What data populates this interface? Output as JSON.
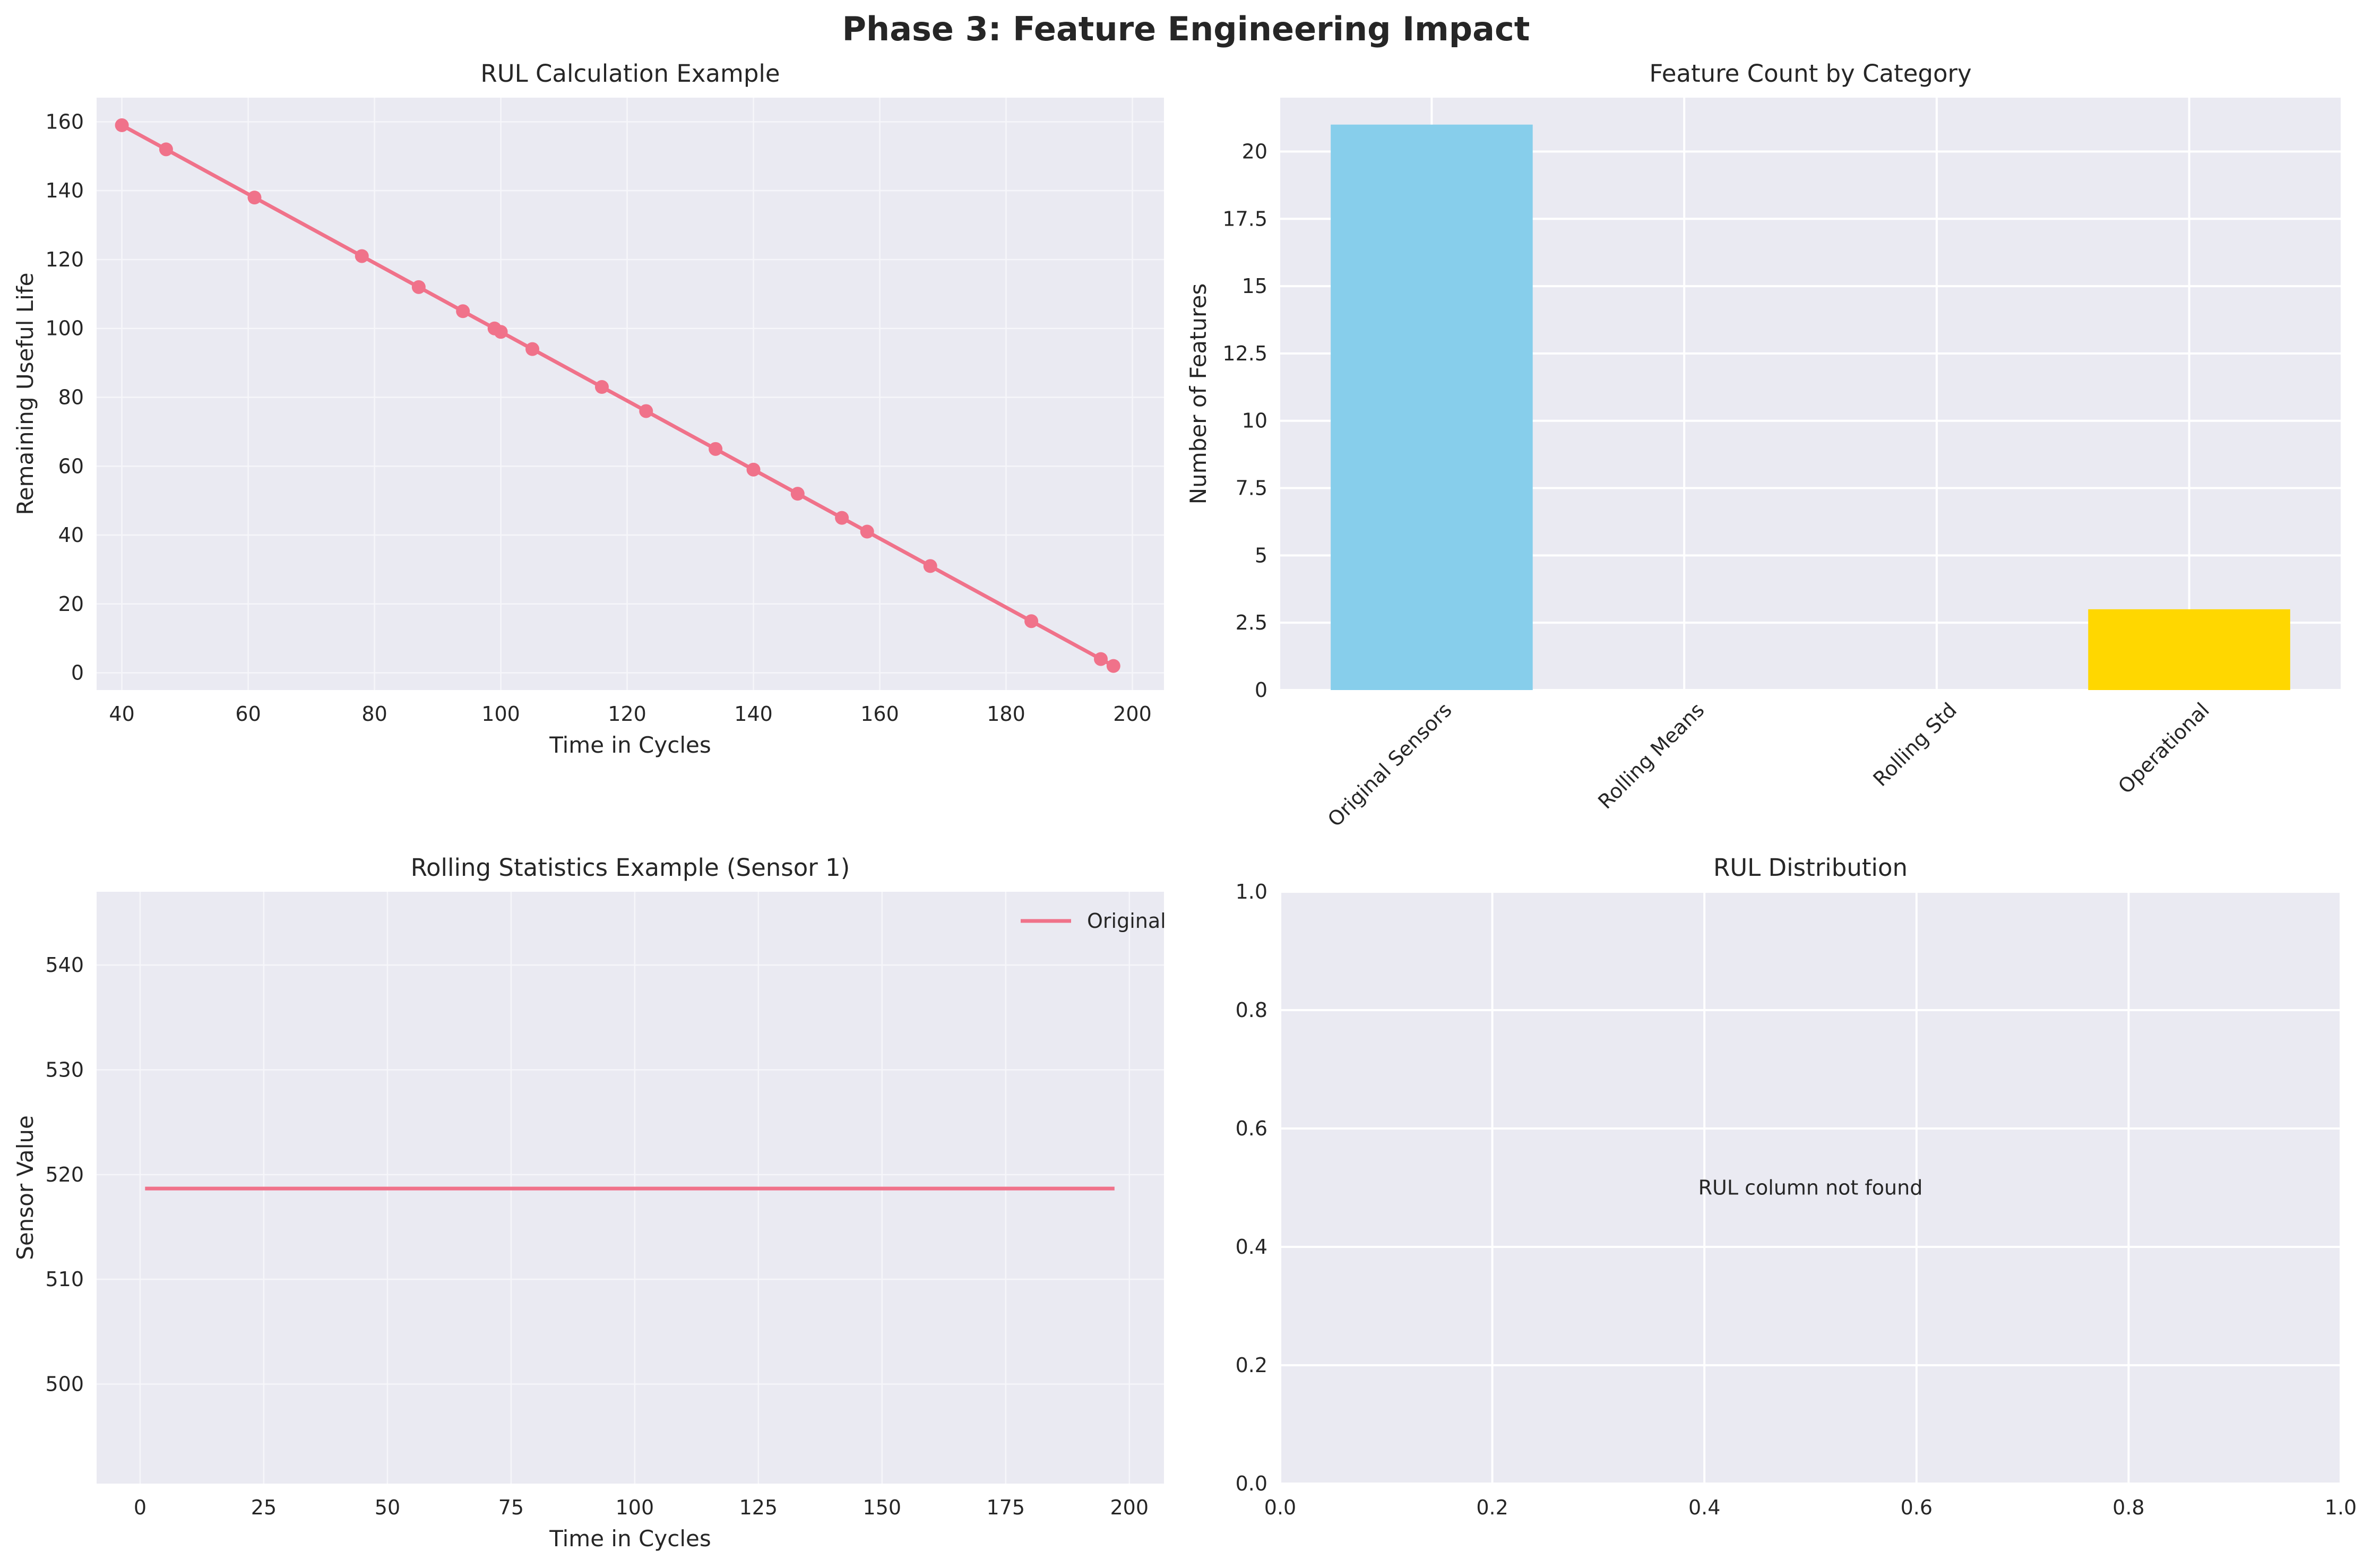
{
  "suptitle": "Phase 3: Feature Engineering Impact",
  "colors": {
    "line": "#f0728a",
    "bar_sensors": "#87ceeb",
    "bar_operational": "#ffd700",
    "panel_bg": "#eaeaf2",
    "grid": "#ffffff"
  },
  "chart_data": [
    {
      "type": "line",
      "title": "RUL Calculation Example",
      "xlabel": "Time in Cycles",
      "ylabel": "Remaining Useful Life",
      "xlim": [
        36,
        205
      ],
      "ylim": [
        -5,
        167
      ],
      "xticks": [
        40,
        60,
        80,
        100,
        120,
        140,
        160,
        180,
        200
      ],
      "yticks": [
        0,
        20,
        40,
        60,
        80,
        100,
        120,
        140,
        160
      ],
      "grid": true,
      "markers": true,
      "x": [
        40,
        47,
        61,
        78,
        87,
        94,
        99,
        100,
        105,
        116,
        123,
        134,
        140,
        147,
        154,
        158,
        168,
        184,
        195,
        197
      ],
      "y": [
        159,
        152,
        138,
        121,
        112,
        105,
        100,
        99,
        94,
        83,
        76,
        65,
        59,
        52,
        45,
        41,
        31,
        15,
        4,
        2
      ]
    },
    {
      "type": "bar",
      "title": "Feature Count by Category",
      "xlabel": "",
      "ylabel": "Number of Features",
      "ylim": [
        0,
        22
      ],
      "yticks": [
        0.0,
        2.5,
        5.0,
        7.5,
        10.0,
        12.5,
        15.0,
        17.5,
        20.0
      ],
      "grid": true,
      "categories": [
        "Original Sensors",
        "Rolling Means",
        "Rolling Std",
        "Operational"
      ],
      "values": [
        21,
        0,
        0,
        3
      ]
    },
    {
      "type": "line",
      "title": "Rolling Statistics Example (Sensor 1)",
      "xlabel": "Time in Cycles",
      "ylabel": "Sensor Value",
      "xlim": [
        -8.8,
        207
      ],
      "ylim": [
        490.5,
        547
      ],
      "xticks": [
        0,
        25,
        50,
        75,
        100,
        125,
        150,
        175,
        200
      ],
      "yticks": [
        500,
        510,
        520,
        530,
        540
      ],
      "grid": true,
      "legend": "top-right",
      "series": [
        {
          "name": "Original",
          "x": [
            1,
            197
          ],
          "y": [
            518.67,
            518.67
          ]
        }
      ]
    },
    {
      "type": "line",
      "title": "RUL Distribution",
      "xlabel": "",
      "ylabel": "",
      "xlim": [
        0,
        1
      ],
      "ylim": [
        0,
        1
      ],
      "xticks": [
        "0.0",
        "0.2",
        "0.4",
        "0.6",
        "0.8",
        "1.0"
      ],
      "yticks": [
        "0.0",
        "0.2",
        "0.4",
        "0.6",
        "0.8",
        "1.0"
      ],
      "grid": true,
      "annotation": "RUL column not found"
    }
  ]
}
